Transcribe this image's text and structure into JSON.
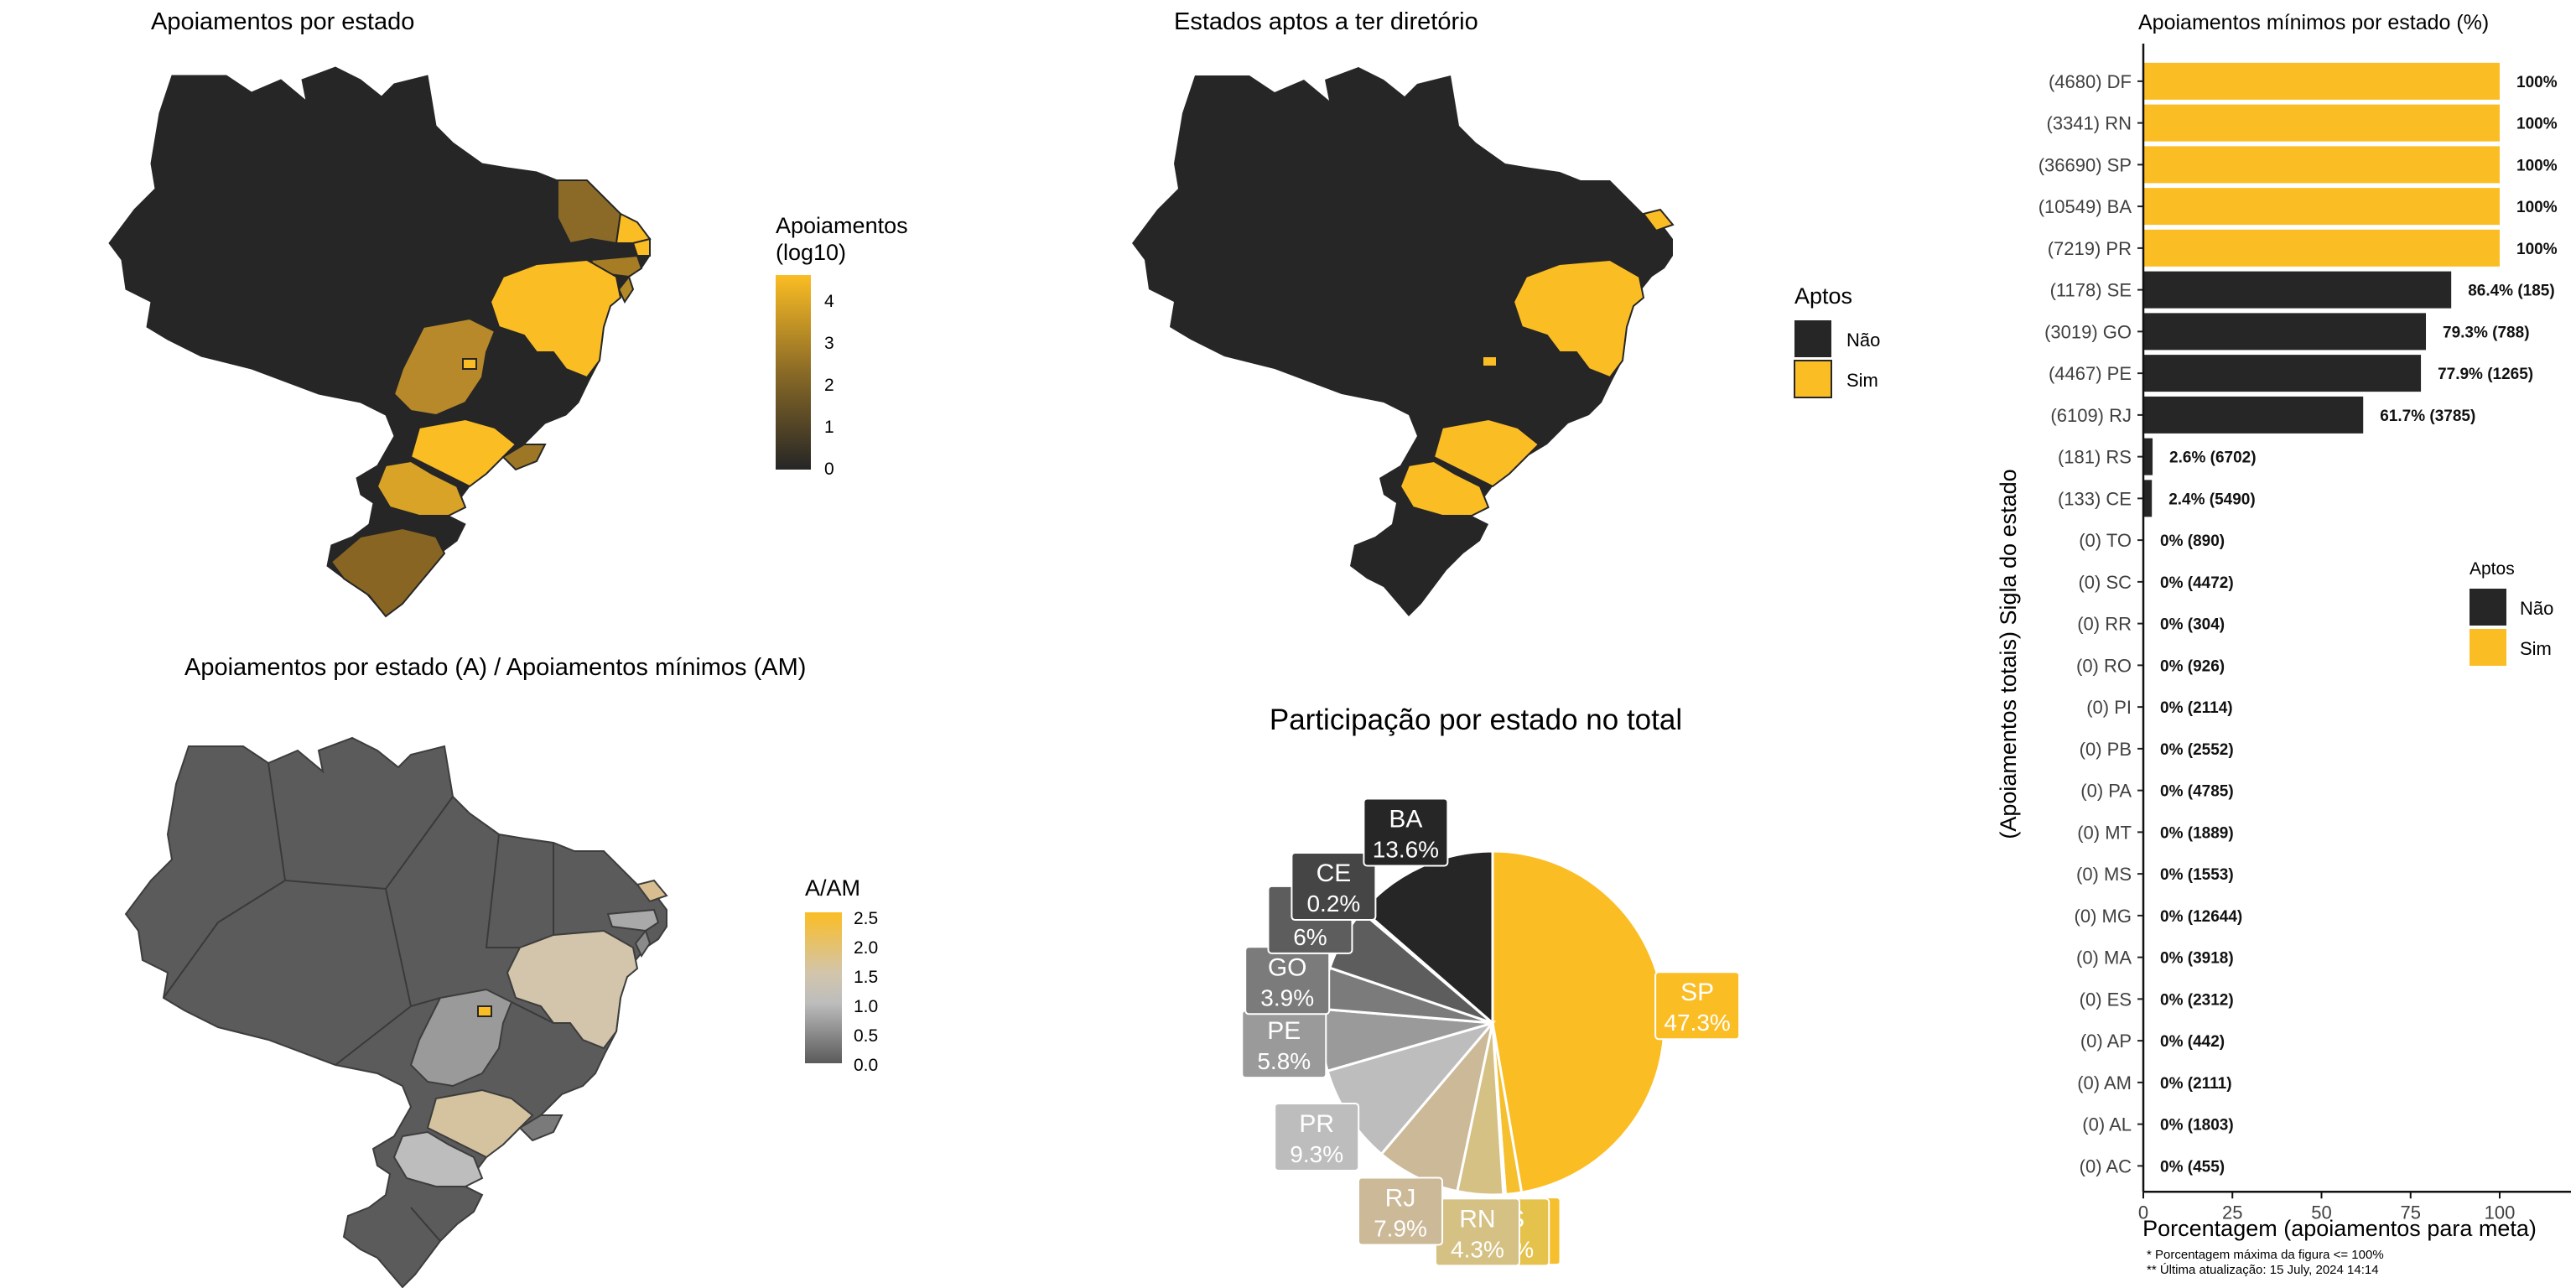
{
  "colors": {
    "dark": "#262626",
    "gold": "#fbbd24",
    "white": "#ffffff"
  },
  "panel1": {
    "title": "Apoiamentos por estado",
    "legend_title_1": "Apoiamentos",
    "legend_title_2": "(log10)",
    "legend_ticks": [
      "4",
      "3",
      "2",
      "1",
      "0"
    ]
  },
  "panel2": {
    "title": "Estados aptos a ter diretório",
    "legend_title": "Aptos",
    "legend_items": [
      "Não",
      "Sim"
    ]
  },
  "panel3": {
    "title": "Apoiamentos por estado (A) / Apoiamentos mínimos (AM)",
    "legend_title": "A/AM",
    "legend_ticks": [
      "2.5",
      "2.0",
      "1.5",
      "1.0",
      "0.5",
      "0.0"
    ]
  },
  "footer": {
    "line1": "* Porcentagem máxima da figura <= 100%",
    "line2": "** Última atualização: 15 July, 2024 14:14"
  },
  "chart_data": [
    {
      "type": "pie",
      "title": "Participação por estado no total",
      "slices": [
        {
          "label": "SP",
          "value": 47.3,
          "text": "47.3%",
          "color": "#fbbd24"
        },
        {
          "label": "SE",
          "value": 1.5,
          "text": "1.5%",
          "color": "#f5bf2e"
        },
        {
          "label": "RS",
          "value": 0.2,
          "text": "0.2%",
          "color": "#e4c24b"
        },
        {
          "label": "RN",
          "value": 4.3,
          "text": "4.3%",
          "color": "#d5c183"
        },
        {
          "label": "RJ",
          "value": 7.9,
          "text": "7.9%",
          "color": "#cbb997"
        },
        {
          "label": "PR",
          "value": 9.3,
          "text": "9.3%",
          "color": "#bdbdbd"
        },
        {
          "label": "PE",
          "value": 5.8,
          "text": "5.8%",
          "color": "#9a9a9a"
        },
        {
          "label": "GO",
          "value": 3.9,
          "text": "3.9%",
          "color": "#7b7b7b"
        },
        {
          "label": "DF",
          "value": 6.0,
          "text": "6%",
          "color": "#5d5d5d"
        },
        {
          "label": "CE",
          "value": 0.2,
          "text": "0.2%",
          "color": "#454545"
        },
        {
          "label": "BA",
          "value": 13.6,
          "text": "13.6%",
          "color": "#262626"
        }
      ]
    },
    {
      "type": "bar",
      "title": "Apoiamentos mínimos por estado (%)",
      "xlabel": "Porcentagem (apoiamentos para meta)",
      "ylabel": "(Apoiamentos totais) Sigla do estado",
      "xlim": [
        0,
        120
      ],
      "xticks": [
        0,
        25,
        50,
        75,
        100
      ],
      "legend_title": "Aptos",
      "legend_items": [
        "Não",
        "Sim"
      ],
      "bars": [
        {
          "category": "(4680) DF",
          "value": 100,
          "label": "100%",
          "apto": true
        },
        {
          "category": "(3341) RN",
          "value": 100,
          "label": "100%",
          "apto": true
        },
        {
          "category": "(36690) SP",
          "value": 100,
          "label": "100%",
          "apto": true
        },
        {
          "category": "(10549) BA",
          "value": 100,
          "label": "100%",
          "apto": true
        },
        {
          "category": "(7219) PR",
          "value": 100,
          "label": "100%",
          "apto": true
        },
        {
          "category": "(1178) SE",
          "value": 86.4,
          "label": "86.4% (185)",
          "apto": false
        },
        {
          "category": "(3019) GO",
          "value": 79.3,
          "label": "79.3% (788)",
          "apto": false
        },
        {
          "category": "(4467) PE",
          "value": 77.9,
          "label": "77.9% (1265)",
          "apto": false
        },
        {
          "category": "(6109) RJ",
          "value": 61.7,
          "label": "61.7% (3785)",
          "apto": false
        },
        {
          "category": "(181) RS",
          "value": 2.6,
          "label": "2.6% (6702)",
          "apto": false
        },
        {
          "category": "(133) CE",
          "value": 2.4,
          "label": "2.4% (5490)",
          "apto": false
        },
        {
          "category": "(0) TO",
          "value": 0,
          "label": "0% (890)",
          "apto": false
        },
        {
          "category": "(0) SC",
          "value": 0,
          "label": "0% (4472)",
          "apto": false
        },
        {
          "category": "(0) RR",
          "value": 0,
          "label": "0% (304)",
          "apto": false
        },
        {
          "category": "(0) RO",
          "value": 0,
          "label": "0% (926)",
          "apto": false
        },
        {
          "category": "(0) PI",
          "value": 0,
          "label": "0% (2114)",
          "apto": false
        },
        {
          "category": "(0) PB",
          "value": 0,
          "label": "0% (2552)",
          "apto": false
        },
        {
          "category": "(0) PA",
          "value": 0,
          "label": "0% (4785)",
          "apto": false
        },
        {
          "category": "(0) MT",
          "value": 0,
          "label": "0% (1889)",
          "apto": false
        },
        {
          "category": "(0) MS",
          "value": 0,
          "label": "0% (1553)",
          "apto": false
        },
        {
          "category": "(0) MG",
          "value": 0,
          "label": "0% (12644)",
          "apto": false
        },
        {
          "category": "(0) MA",
          "value": 0,
          "label": "0% (3918)",
          "apto": false
        },
        {
          "category": "(0) ES",
          "value": 0,
          "label": "0% (2312)",
          "apto": false
        },
        {
          "category": "(0) AP",
          "value": 0,
          "label": "0% (442)",
          "apto": false
        },
        {
          "category": "(0) AM",
          "value": 0,
          "label": "0% (2111)",
          "apto": false
        },
        {
          "category": "(0) AL",
          "value": 0,
          "label": "0% (1803)",
          "apto": false
        },
        {
          "category": "(0) AC",
          "value": 0,
          "label": "0% (455)",
          "apto": false
        }
      ]
    }
  ]
}
